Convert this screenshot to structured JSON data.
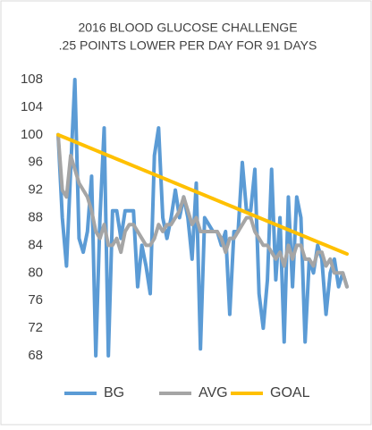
{
  "chart_data": {
    "type": "line",
    "title": "2016 BLOOD GLUCOSE CHALLENGE",
    "subtitle": ".25 POINTS LOWER PER DAY FOR 91 DAYS",
    "ylim": [
      68,
      108
    ],
    "yticks": [
      68,
      72,
      76,
      80,
      84,
      88,
      92,
      96,
      100,
      104,
      108
    ],
    "grid": false,
    "legend": "bottom",
    "series": [
      {
        "name": "BG",
        "color": "#5b9bd5",
        "values": [
          100,
          88,
          81,
          95,
          108,
          85,
          83,
          86,
          94,
          68,
          88,
          101,
          68,
          89,
          89,
          85,
          89,
          89,
          89,
          78,
          84,
          81,
          77,
          97,
          101,
          88,
          85,
          88,
          92,
          88,
          91,
          88,
          82,
          93,
          69,
          88,
          87,
          86,
          86,
          84,
          86,
          74,
          86,
          86,
          96,
          89,
          89,
          95,
          77,
          72,
          79,
          95,
          79,
          88,
          70,
          91,
          78,
          91,
          88,
          70,
          82,
          80,
          84,
          82,
          74,
          80,
          82,
          78,
          80,
          78
        ]
      },
      {
        "name": "AVG",
        "color": "#a5a5a5",
        "values": [
          100,
          92,
          91,
          97,
          95,
          93,
          92,
          91,
          89,
          86,
          85,
          87,
          84,
          84,
          85,
          83,
          86,
          87,
          87,
          86,
          85,
          84,
          84,
          85,
          87,
          86,
          87,
          87,
          88,
          89,
          91,
          89,
          87,
          88,
          86,
          86,
          86,
          86,
          86,
          85,
          83,
          85,
          85,
          86,
          87,
          88,
          88,
          86,
          85,
          84,
          84,
          83,
          82,
          83,
          81,
          84,
          82,
          84,
          84,
          82,
          82,
          81,
          83,
          83,
          81,
          82,
          80,
          80,
          80,
          78
        ]
      },
      {
        "name": "GOAL",
        "color": "#ffc000",
        "values": [
          100,
          99.75,
          99.5,
          99.25,
          99,
          98.75,
          98.5,
          98.25,
          98,
          97.75,
          97.5,
          97.25,
          97,
          96.75,
          96.5,
          96.25,
          96,
          95.75,
          95.5,
          95.25,
          95,
          94.75,
          94.5,
          94.25,
          94,
          93.75,
          93.5,
          93.25,
          93,
          92.75,
          92.5,
          92.25,
          92,
          91.75,
          91.5,
          91.25,
          91,
          90.75,
          90.5,
          90.25,
          90,
          89.75,
          89.5,
          89.25,
          89,
          88.75,
          88.5,
          88.25,
          88,
          87.75,
          87.5,
          87.25,
          87,
          86.75,
          86.5,
          86.25,
          86,
          85.75,
          85.5,
          85.25,
          85,
          84.75,
          84.5,
          84.25,
          84,
          83.75,
          83.5,
          83.25,
          83,
          82.75
        ]
      }
    ]
  }
}
